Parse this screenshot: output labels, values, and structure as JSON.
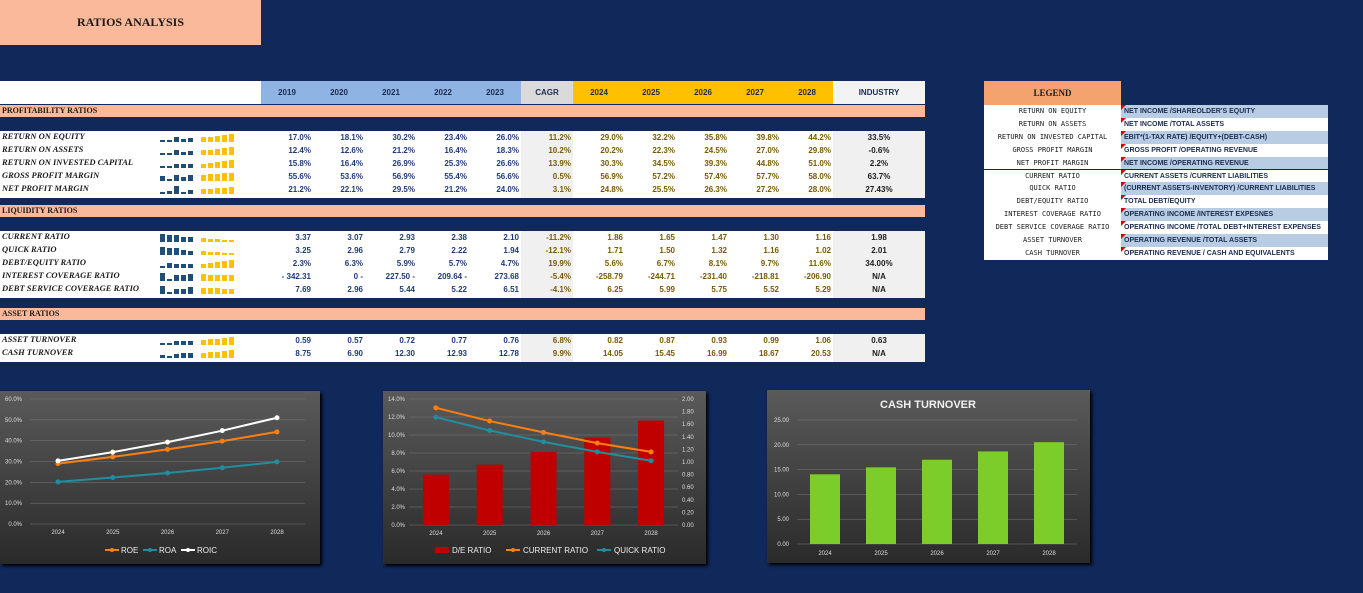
{
  "page_title": "RATIOS ANALYSIS",
  "columns": {
    "hist": [
      "2019",
      "2020",
      "2021",
      "2022",
      "2023"
    ],
    "cagr": "CAGR",
    "proj": [
      "2024",
      "2025",
      "2026",
      "2027",
      "2028"
    ],
    "industry": "INDUSTRY"
  },
  "sections": [
    {
      "title": "PROFITABILITY RATIOS",
      "rows": [
        {
          "label": "RETURN ON EQUITY",
          "hist": [
            "17.0%",
            "18.1%",
            "30.2%",
            "23.4%",
            "26.0%"
          ],
          "cagr": "11.2%",
          "proj": [
            "29.0%",
            "32.2%",
            "35.8%",
            "39.8%",
            "44.2%"
          ],
          "industry": "33.5%"
        },
        {
          "label": "RETURN ON ASSETS",
          "hist": [
            "12.4%",
            "12.6%",
            "21.2%",
            "16.4%",
            "18.3%"
          ],
          "cagr": "10.2%",
          "proj": [
            "20.2%",
            "22.3%",
            "24.5%",
            "27.0%",
            "29.8%"
          ],
          "industry": "-0.6%"
        },
        {
          "label": "RETURN ON INVESTED CAPITAL",
          "hist": [
            "15.8%",
            "16.4%",
            "26.9%",
            "25.3%",
            "26.6%"
          ],
          "cagr": "13.9%",
          "proj": [
            "30.3%",
            "34.5%",
            "39.3%",
            "44.8%",
            "51.0%"
          ],
          "industry": "2.2%"
        },
        {
          "label": "GROSS PROFIT MARGIN",
          "hist": [
            "55.6%",
            "53.6%",
            "56.9%",
            "55.4%",
            "56.6%"
          ],
          "cagr": "0.5%",
          "proj": [
            "56.9%",
            "57.2%",
            "57.4%",
            "57.7%",
            "58.0%"
          ],
          "industry": "63.7%"
        },
        {
          "label": "NET PROFIT MARGIN",
          "hist": [
            "21.2%",
            "22.1%",
            "29.5%",
            "21.2%",
            "24.0%"
          ],
          "cagr": "3.1%",
          "proj": [
            "24.8%",
            "25.5%",
            "26.3%",
            "27.2%",
            "28.0%"
          ],
          "industry": "27.43%"
        }
      ]
    },
    {
      "title": "LIQUIDITY RATIOS",
      "rows": [
        {
          "label": "CURRENT RATIO",
          "hist": [
            "3.37",
            "3.07",
            "2.93",
            "2.38",
            "2.10"
          ],
          "cagr": "-11.2%",
          "proj": [
            "1.86",
            "1.65",
            "1.47",
            "1.30",
            "1.16"
          ],
          "industry": "1.98"
        },
        {
          "label": "QUICK RATIO",
          "hist": [
            "3.25",
            "2.96",
            "2.79",
            "2.22",
            "1.94"
          ],
          "cagr": "-12.1%",
          "proj": [
            "1.71",
            "1.50",
            "1.32",
            "1.16",
            "1.02"
          ],
          "industry": "2.01"
        },
        {
          "label": "DEBT/EQUITY RATIO",
          "hist": [
            "2.3%",
            "6.3%",
            "5.9%",
            "5.7%",
            "4.7%"
          ],
          "cagr": "19.9%",
          "proj": [
            "5.6%",
            "6.7%",
            "8.1%",
            "9.7%",
            "11.6%"
          ],
          "industry": "34.00%"
        },
        {
          "label": "INTEREST COVERAGE RATIO",
          "hist": [
            "-   342.31",
            "0  -",
            "227.50  -",
            "209.64  -",
            "273.68"
          ],
          "cagr": "-5.4%",
          "proj": [
            "-258.79",
            "-244.71",
            "-231.40",
            "-218.81",
            "-206.90"
          ],
          "industry": "N/A"
        },
        {
          "label": "DEBT SERVICE COVERAGE RATIO",
          "hist": [
            "7.69",
            "2.96",
            "5.44",
            "5.22",
            "6.51"
          ],
          "cagr": "-4.1%",
          "proj": [
            "6.25",
            "5.99",
            "5.75",
            "5.52",
            "5.29"
          ],
          "industry": "N/A"
        }
      ]
    },
    {
      "title": "ASSET RATIOS",
      "rows": [
        {
          "label": "ASSET TURNOVER",
          "hist": [
            "0.59",
            "0.57",
            "0.72",
            "0.77",
            "0.76"
          ],
          "cagr": "6.8%",
          "proj": [
            "0.82",
            "0.87",
            "0.93",
            "0.99",
            "1.06"
          ],
          "industry": "0.63"
        },
        {
          "label": "CASH TURNOVER",
          "hist": [
            "8.75",
            "6.90",
            "12.30",
            "12.93",
            "12.78"
          ],
          "cagr": "9.9%",
          "proj": [
            "14.05",
            "15.45",
            "16.99",
            "18.67",
            "20.53"
          ],
          "industry": "N/A"
        }
      ]
    }
  ],
  "legend": {
    "title": "LEGEND",
    "items": [
      {
        "key": "RETURN ON EQUITY",
        "formula": "NET INCOME /SHAREOLDER'S EQUITY"
      },
      {
        "key": "RETURN ON ASSETS",
        "formula": "NET INCOME /TOTAL ASSETS"
      },
      {
        "key": "RETURN ON INVESTED CAPITAL",
        "formula": "EBIT*(1-TAX RATE) /EQUITY+(DEBT-CASH)"
      },
      {
        "key": "GROSS PROFIT MARGIN",
        "formula": "GROSS PROFIT /OPERATING REVENUE"
      },
      {
        "key": "NET PROFIT MARGIN",
        "formula": "NET INCOME /OPERATING REVENUE"
      },
      {
        "key": "CURRENT RATIO",
        "formula": "CURRENT ASSETS /CURRENT LIABILITIES"
      },
      {
        "key": "QUICK RATIO",
        "formula": "(CURRENT ASSETS-INVENTORY) /CURRENT LIABILITIES"
      },
      {
        "key": "DEBT/EQUITY RATIO",
        "formula": "TOTAL DEBT/EQUITY"
      },
      {
        "key": "INTEREST COVERAGE RATIO",
        "formula": "OPERATING INCOME /INTEREST EXPESNES"
      },
      {
        "key": "DEBT SERVICE COVERAGE RATIO",
        "formula": "OPERATING INCOME /TOTAL DEBT+INTEREST EXPENSES"
      },
      {
        "key": "ASSET TURNOVER",
        "formula": "OPERATING REVENUE /TOTAL ASSETS"
      },
      {
        "key": "CASH TURNOVER",
        "formula": "OPERATING REVENUE / CASH AND EQUIVALENTS"
      }
    ]
  },
  "chart_data": [
    {
      "type": "line",
      "title": "",
      "x": [
        "2024",
        "2025",
        "2026",
        "2027",
        "2028"
      ],
      "ylim": [
        0,
        60
      ],
      "yticks": [
        "0.0%",
        "10.0%",
        "20.0%",
        "30.0%",
        "40.0%",
        "50.0%",
        "60.0%"
      ],
      "series": [
        {
          "name": "ROE",
          "values": [
            29.0,
            32.2,
            35.8,
            39.8,
            44.2
          ],
          "color": "#ff7f0e"
        },
        {
          "name": "ROA",
          "values": [
            20.2,
            22.3,
            24.5,
            27.0,
            29.8
          ],
          "color": "#1f8fa0"
        },
        {
          "name": "ROIC",
          "values": [
            30.3,
            34.5,
            39.3,
            44.8,
            51.0
          ],
          "color": "#ffffff"
        }
      ]
    },
    {
      "type": "bar",
      "title": "",
      "x": [
        "2024",
        "2025",
        "2026",
        "2027",
        "2028"
      ],
      "ylim": [
        0,
        14
      ],
      "yticks": [
        "0.0%",
        "2.0%",
        "4.0%",
        "6.0%",
        "8.0%",
        "10.0%",
        "12.0%",
        "14.0%"
      ],
      "y2lim": [
        0,
        2
      ],
      "y2ticks": [
        "0.00",
        "0.20",
        "0.40",
        "0.60",
        "0.80",
        "1.00",
        "1.20",
        "1.40",
        "1.60",
        "1.80",
        "2.00"
      ],
      "series": [
        {
          "name": "D/E RATIO",
          "kind": "bar",
          "axis": "left",
          "values": [
            5.6,
            6.7,
            8.1,
            9.7,
            11.6
          ],
          "color": "#c00000"
        },
        {
          "name": "CURRENT RATIO",
          "kind": "line",
          "axis": "right",
          "values": [
            1.86,
            1.65,
            1.47,
            1.3,
            1.16
          ],
          "color": "#ff7f0e"
        },
        {
          "name": "QUICK RATIO",
          "kind": "line",
          "axis": "right",
          "values": [
            1.71,
            1.5,
            1.32,
            1.16,
            1.02
          ],
          "color": "#1f8fa0"
        }
      ]
    },
    {
      "type": "bar",
      "title": "CASH TURNOVER",
      "x": [
        "2024",
        "2025",
        "2026",
        "2027",
        "2028"
      ],
      "ylim": [
        0,
        25
      ],
      "yticks": [
        "0.00",
        "5.00",
        "10.00",
        "15.00",
        "20.00",
        "25.00"
      ],
      "series": [
        {
          "values": [
            14.05,
            15.45,
            16.99,
            18.67,
            20.53
          ],
          "color": "#7ccd2a"
        }
      ]
    }
  ]
}
